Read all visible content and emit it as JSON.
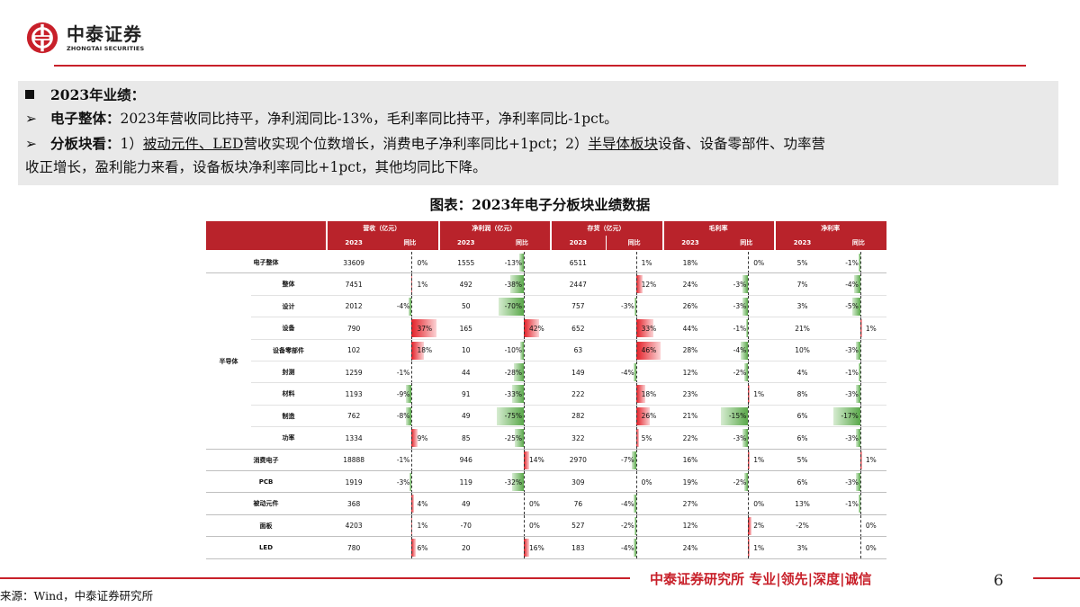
{
  "logo": {
    "cn": "中泰证券",
    "en": "ZHONGTAI SECURITIES"
  },
  "summary": {
    "heading": "2023年业绩：",
    "line1_label": "电子整体：",
    "line1_text": "2023年营收同比持平，净利润同比-13%，毛利率同比持平，净利率同比-1pct。",
    "line2_label": "分板块看：",
    "line2_pre": "1）",
    "line2_u1": "被动元件、LED",
    "line2_mid": "营收实现个位数增长，消费电子净利率同比+1pct；2）",
    "line2_u2": "半导体板块",
    "line2_post": "设备、设备零部件、功率营",
    "line3_text": "收正增长，盈利能力来看，设备板块净利率同比+1pct，其他均同比下降。"
  },
  "chart_title": "图表：2023年电子分板块业绩数据",
  "table": {
    "groups": [
      "营收（亿元）",
      "净利润（亿元）",
      "存货（亿元）",
      "毛利率",
      "净利率"
    ],
    "sub_headers": [
      "2023",
      "同比"
    ],
    "semi_label": "半导体",
    "rows": [
      {
        "label": "电子整体",
        "v": [
          "33609",
          "0%",
          "1555",
          "-13%",
          "6511",
          "1%",
          "18%",
          "0%",
          "5%",
          "-1%"
        ]
      },
      {
        "label": "整体",
        "v": [
          "7451",
          "1%",
          "492",
          "-38%",
          "2447",
          "12%",
          "24%",
          "-3%",
          "7%",
          "-4%"
        ]
      },
      {
        "label": "设计",
        "v": [
          "2012",
          "-4%",
          "50",
          "-70%",
          "757",
          "-3%",
          "26%",
          "-3%",
          "3%",
          "-5%"
        ]
      },
      {
        "label": "设备",
        "v": [
          "790",
          "37%",
          "165",
          "42%",
          "652",
          "33%",
          "44%",
          "-1%",
          "21%",
          "1%"
        ]
      },
      {
        "label": "设备零部件",
        "v": [
          "102",
          "18%",
          "10",
          "-10%",
          "63",
          "46%",
          "28%",
          "-4%",
          "10%",
          "-3%"
        ]
      },
      {
        "label": "封测",
        "v": [
          "1259",
          "-1%",
          "44",
          "-28%",
          "149",
          "-4%",
          "12%",
          "-2%",
          "4%",
          "-1%"
        ]
      },
      {
        "label": "材料",
        "v": [
          "1193",
          "-9%",
          "91",
          "-33%",
          "222",
          "18%",
          "23%",
          "1%",
          "8%",
          "-3%"
        ]
      },
      {
        "label": "制造",
        "v": [
          "762",
          "-8%",
          "49",
          "-75%",
          "282",
          "26%",
          "21%",
          "-15%",
          "6%",
          "-17%"
        ]
      },
      {
        "label": "功率",
        "v": [
          "1334",
          "9%",
          "85",
          "-25%",
          "322",
          "5%",
          "22%",
          "-3%",
          "6%",
          "-3%"
        ]
      },
      {
        "label": "消费电子",
        "v": [
          "18888",
          "-1%",
          "946",
          "14%",
          "2970",
          "-7%",
          "16%",
          "1%",
          "5%",
          "1%"
        ]
      },
      {
        "label": "PCB",
        "v": [
          "1919",
          "-3%",
          "119",
          "-32%",
          "309",
          "0%",
          "19%",
          "-2%",
          "6%",
          "-3%"
        ]
      },
      {
        "label": "被动元件",
        "v": [
          "368",
          "4%",
          "49",
          "0%",
          "76",
          "-4%",
          "27%",
          "0%",
          "13%",
          "-1%"
        ]
      },
      {
        "label": "面板",
        "v": [
          "4203",
          "1%",
          "-70",
          "0%",
          "527",
          "-2%",
          "12%",
          "2%",
          "-2%",
          "0%"
        ]
      },
      {
        "label": "LED",
        "v": [
          "780",
          "6%",
          "20",
          "16%",
          "183",
          "-4%",
          "24%",
          "1%",
          "3%",
          "0%"
        ]
      }
    ]
  },
  "footer": {
    "brand": "中泰证券研究所 专业|领先|深度|诚信",
    "page": "6",
    "source": "来源：Wind，中泰证券研究所"
  },
  "colors": {
    "brand_red": "#c8202a",
    "header_red": "#b9232b",
    "pos_bar": "#e31e26",
    "neg_bar": "#5aa84a"
  }
}
